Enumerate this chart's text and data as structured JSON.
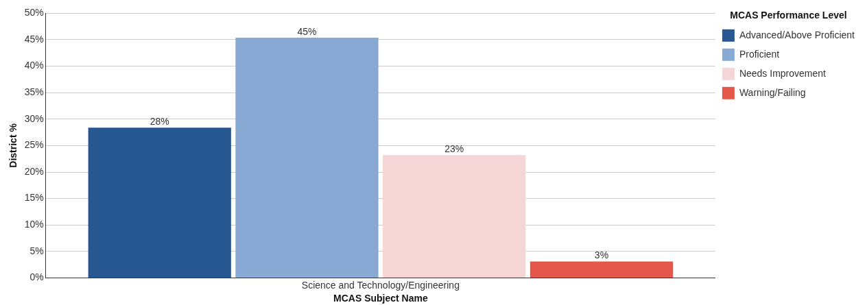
{
  "chart_data": {
    "type": "bar",
    "xlabel": "MCAS Subject Name",
    "ylabel": "District %",
    "legend_title": "MCAS Performance Level",
    "categories": [
      "Science and Technology/Engineering"
    ],
    "series": [
      {
        "name": "Advanced/Above Proficient",
        "color": "#285892",
        "values": [
          28.4
        ],
        "value_labels": [
          "28%"
        ]
      },
      {
        "name": "Proficient",
        "color": "#87a9d3",
        "values": [
          45.4
        ],
        "value_labels": [
          "45%"
        ]
      },
      {
        "name": "Needs Improvement",
        "color": "#f5d6d6",
        "values": [
          23.2
        ],
        "value_labels": [
          "23%"
        ]
      },
      {
        "name": "Warning/Failing",
        "color": "#e5574a",
        "values": [
          3.1
        ],
        "value_labels": [
          "3%"
        ]
      }
    ],
    "ylim": [
      0,
      50
    ],
    "yticks": [
      {
        "value": 0,
        "label": "0%"
      },
      {
        "value": 5,
        "label": "5%"
      },
      {
        "value": 10,
        "label": "10%"
      },
      {
        "value": 15,
        "label": "15%"
      },
      {
        "value": 20,
        "label": "20%"
      },
      {
        "value": 25,
        "label": "25%"
      },
      {
        "value": 30,
        "label": "30%"
      },
      {
        "value": 35,
        "label": "35%"
      },
      {
        "value": 40,
        "label": "40%"
      },
      {
        "value": 45,
        "label": "45%"
      },
      {
        "value": 50,
        "label": "50%"
      }
    ],
    "grid": "y",
    "legend": "right"
  }
}
